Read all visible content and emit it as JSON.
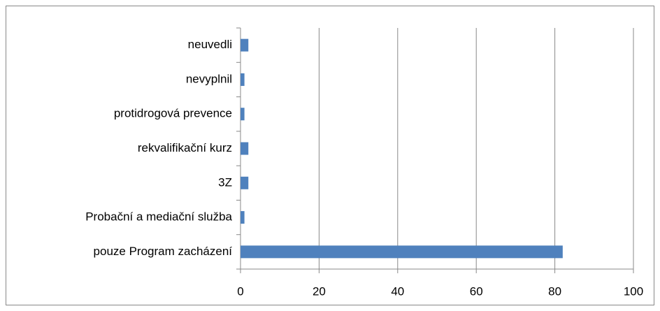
{
  "chart_data": {
    "type": "bar",
    "orientation": "horizontal",
    "categories": [
      "neuvedli",
      "nevyplnil",
      "protidrogová prevence",
      "rekvalifikační kurz",
      "3Z",
      "Probační a mediační služba",
      "pouze Program zacházení"
    ],
    "values": [
      2,
      1,
      1,
      2,
      2,
      1,
      82
    ],
    "color": "#4f81bd",
    "xlim": [
      0,
      100
    ],
    "xticks": [
      0,
      20,
      40,
      60,
      80,
      100
    ],
    "grid": true
  }
}
